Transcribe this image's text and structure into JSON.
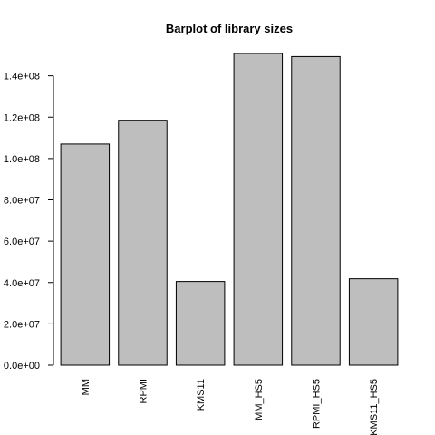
{
  "chart_data": {
    "type": "bar",
    "title": "Barplot of library sizes",
    "categories": [
      "MM",
      "RPMI",
      "KMS11",
      "MM_HS5",
      "RPMI_HS5",
      "KMS11_HS5"
    ],
    "values": [
      107000000,
      118500000,
      40500000,
      150800000,
      149300000,
      41800000
    ],
    "xlabel": "",
    "ylabel": "",
    "ylim": [
      0,
      150800000
    ],
    "yticks": [
      0,
      20000000,
      40000000,
      60000000,
      80000000,
      100000000,
      120000000,
      140000000
    ],
    "ytick_labels": [
      "0.0e+00",
      "2.0e+07",
      "4.0e+07",
      "6.0e+07",
      "8.0e+07",
      "1.0e+08",
      "1.2e+08",
      "1.4e+08"
    ],
    "bar_fill": "#bebebe",
    "bar_stroke": "#000000",
    "grid": false,
    "legend": "none"
  }
}
